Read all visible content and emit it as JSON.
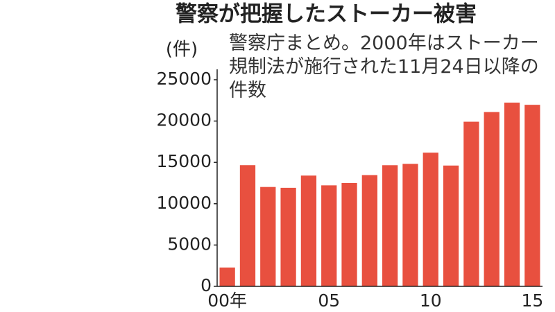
{
  "chart_data": {
    "type": "bar",
    "title": "警察が把握したストーカー被害",
    "y_axis_label": "(件)",
    "annotation": "警察庁まとめ。2000年はストーカー規制法が施行された11月24日以降の件数",
    "categories": [
      "00年",
      null,
      null,
      null,
      null,
      "05",
      null,
      null,
      null,
      null,
      "10",
      null,
      null,
      null,
      null,
      "15"
    ],
    "values": [
      2280,
      14662,
      12024,
      11923,
      13403,
      12220,
      12501,
      13463,
      14657,
      14823,
      16176,
      14618,
      19920,
      21089,
      22823,
      21968
    ],
    "color": "#e8503f",
    "ylim": [
      0,
      25000
    ],
    "yticks": [
      0,
      5000,
      10000,
      15000,
      20000,
      25000
    ],
    "grid": false
  }
}
